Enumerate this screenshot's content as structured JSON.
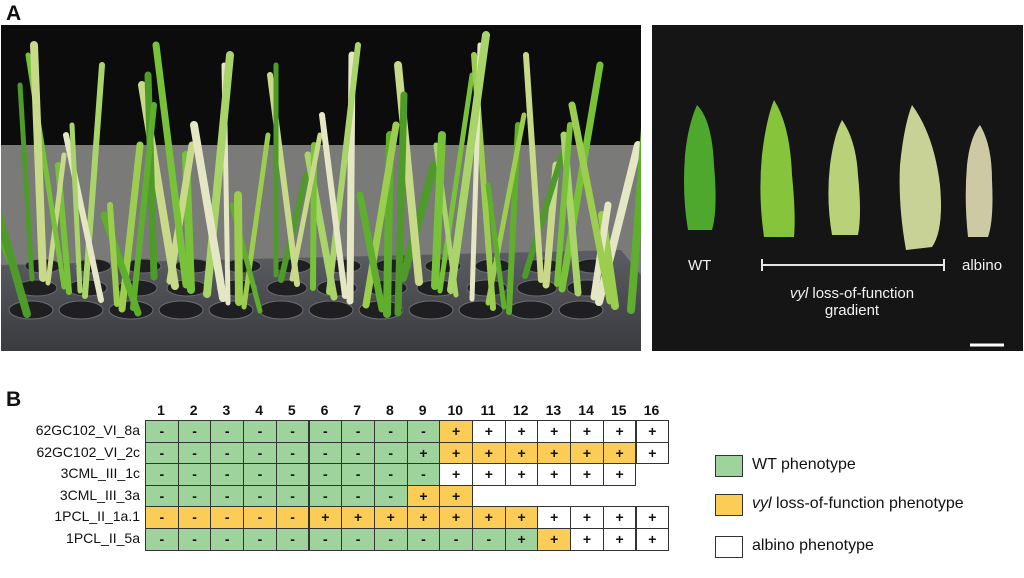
{
  "panel_a_label": "A",
  "panel_b_label": "B",
  "photo_right": {
    "wt_label": "WT",
    "albino_label": "albino",
    "gradient_italic": "vyl",
    "gradient_rest": " loss-of-function",
    "gradient_line2": "gradient"
  },
  "columns": [
    "1",
    "2",
    "3",
    "4",
    "5",
    "6",
    "7",
    "8",
    "9",
    "10",
    "11",
    "12",
    "13",
    "14",
    "15",
    "16"
  ],
  "rows": [
    {
      "name": "62GC102_VI_8a",
      "cells": [
        [
          "-",
          "g"
        ],
        [
          "-",
          "g"
        ],
        [
          "-",
          "g"
        ],
        [
          "-",
          "g"
        ],
        [
          "-",
          "g"
        ],
        [
          "-",
          "g"
        ],
        [
          "-",
          "g"
        ],
        [
          "-",
          "g"
        ],
        [
          "-",
          "g"
        ],
        [
          "+",
          "y"
        ],
        [
          "+",
          "w"
        ],
        [
          "+",
          "w"
        ],
        [
          "+",
          "w"
        ],
        [
          "+",
          "w"
        ],
        [
          "+",
          "w"
        ],
        [
          "+",
          "w"
        ]
      ]
    },
    {
      "name": "62GC102_VI_2c",
      "cells": [
        [
          "-",
          "g"
        ],
        [
          "-",
          "g"
        ],
        [
          "-",
          "g"
        ],
        [
          "-",
          "g"
        ],
        [
          "-",
          "g"
        ],
        [
          "-",
          "g"
        ],
        [
          "-",
          "g"
        ],
        [
          "-",
          "g"
        ],
        [
          "+",
          "g"
        ],
        [
          "+",
          "y"
        ],
        [
          "+",
          "y"
        ],
        [
          "+",
          "y"
        ],
        [
          "+",
          "y"
        ],
        [
          "+",
          "y"
        ],
        [
          "+",
          "y"
        ],
        [
          "+",
          "w"
        ]
      ]
    },
    {
      "name": "3CML_III_1c",
      "cells": [
        [
          "-",
          "g"
        ],
        [
          "-",
          "g"
        ],
        [
          "-",
          "g"
        ],
        [
          "-",
          "g"
        ],
        [
          "-",
          "g"
        ],
        [
          "-",
          "g"
        ],
        [
          "-",
          "g"
        ],
        [
          "-",
          "g"
        ],
        [
          "-",
          "g"
        ],
        [
          "+",
          "w"
        ],
        [
          "+",
          "w"
        ],
        [
          "+",
          "w"
        ],
        [
          "+",
          "w"
        ],
        [
          "+",
          "w"
        ],
        [
          "+",
          "w"
        ]
      ]
    },
    {
      "name": "3CML_III_3a",
      "cells": [
        [
          "-",
          "g"
        ],
        [
          "-",
          "g"
        ],
        [
          "-",
          "g"
        ],
        [
          "-",
          "g"
        ],
        [
          "-",
          "g"
        ],
        [
          "-",
          "g"
        ],
        [
          "-",
          "g"
        ],
        [
          "-",
          "g"
        ],
        [
          "+",
          "y"
        ],
        [
          "+",
          "y"
        ]
      ]
    },
    {
      "name": "1PCL_II_1a.1",
      "cells": [
        [
          "-",
          "y"
        ],
        [
          "-",
          "y"
        ],
        [
          "-",
          "y"
        ],
        [
          "-",
          "y"
        ],
        [
          "-",
          "y"
        ],
        [
          "+",
          "y"
        ],
        [
          "+",
          "y"
        ],
        [
          "+",
          "y"
        ],
        [
          "+",
          "y"
        ],
        [
          "+",
          "y"
        ],
        [
          "+",
          "y"
        ],
        [
          "+",
          "y"
        ],
        [
          "+",
          "w"
        ],
        [
          "+",
          "w"
        ],
        [
          "+",
          "w"
        ],
        [
          "+",
          "w"
        ]
      ]
    },
    {
      "name": "1PCL_II_5a",
      "cells": [
        [
          "-",
          "g"
        ],
        [
          "-",
          "g"
        ],
        [
          "-",
          "g"
        ],
        [
          "-",
          "g"
        ],
        [
          "-",
          "g"
        ],
        [
          "-",
          "g"
        ],
        [
          "-",
          "g"
        ],
        [
          "-",
          "g"
        ],
        [
          "-",
          "g"
        ],
        [
          "-",
          "g"
        ],
        [
          "-",
          "g"
        ],
        [
          "+",
          "g"
        ],
        [
          "+",
          "y"
        ],
        [
          "+",
          "w"
        ],
        [
          "+",
          "w"
        ],
        [
          "+",
          "w"
        ]
      ]
    }
  ],
  "legend": {
    "wt": "WT phenotype",
    "vyl_italic": "vyl",
    "vyl_rest": " loss-of-function phenotype",
    "albino": "albino phenotype"
  },
  "colors": {
    "wt": "#9ed49c",
    "vyl": "#fbcd56",
    "albino": "#ffffff"
  }
}
